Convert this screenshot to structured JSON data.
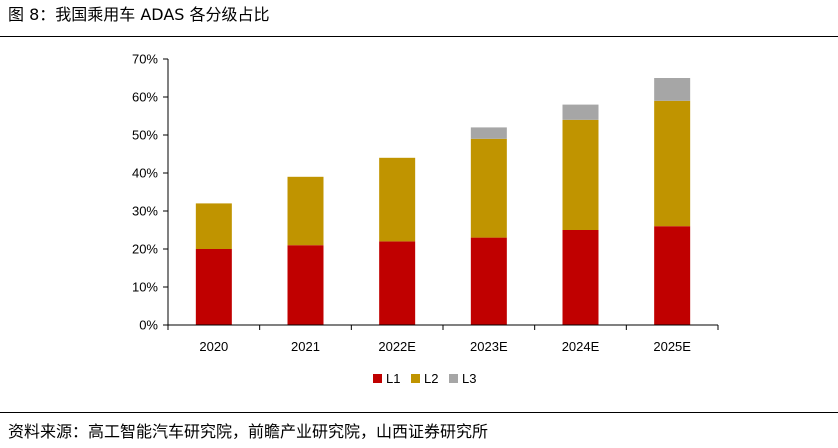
{
  "header": {
    "title": "图 8：我国乘用车 ADAS 各分级占比"
  },
  "footer": {
    "source": "资料来源：高工智能汽车研究院，前瞻产业研究院，山西证券研究所"
  },
  "chart_data": {
    "type": "bar",
    "stacked": true,
    "categories": [
      "2020",
      "2021",
      "2022E",
      "2023E",
      "2024E",
      "2025E"
    ],
    "series": [
      {
        "name": "L1",
        "color": "#c00000",
        "values": [
          20,
          21,
          22,
          23,
          25,
          26
        ]
      },
      {
        "name": "L2",
        "color": "#c09400",
        "values": [
          12,
          18,
          22,
          26,
          29,
          33
        ]
      },
      {
        "name": "L3",
        "color": "#a6a6a6",
        "values": [
          0,
          0,
          0,
          3,
          4,
          6
        ]
      }
    ],
    "ylim": [
      0,
      70
    ],
    "yticks": [
      0,
      10,
      20,
      30,
      40,
      50,
      60,
      70
    ],
    "ytick_labels": [
      "0%",
      "10%",
      "20%",
      "30%",
      "40%",
      "50%",
      "60%",
      "70%"
    ],
    "grid": false,
    "legend_position": "bottom"
  }
}
